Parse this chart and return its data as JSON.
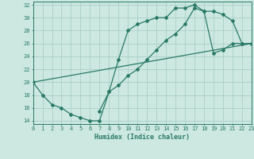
{
  "xlabel": "Humidex (Indice chaleur)",
  "bg_color": "#cce8e0",
  "grid_color": "#aacfc8",
  "line_color": "#2a7a68",
  "xlim": [
    0,
    23
  ],
  "ylim": [
    13.5,
    32.5
  ],
  "yticks": [
    14,
    16,
    18,
    20,
    22,
    24,
    26,
    28,
    30,
    32
  ],
  "xticks": [
    0,
    1,
    2,
    3,
    4,
    5,
    6,
    7,
    8,
    9,
    10,
    11,
    12,
    13,
    14,
    15,
    16,
    17,
    18,
    19,
    20,
    21,
    22,
    23
  ],
  "line1_x": [
    0,
    1,
    2,
    3,
    4,
    5,
    6,
    7,
    8,
    9,
    10,
    11,
    12,
    13,
    14,
    15,
    16,
    17,
    18,
    19,
    20,
    21,
    22,
    23
  ],
  "line1_y": [
    20,
    18,
    16.5,
    16,
    15,
    14.5,
    14,
    14,
    18.5,
    23.5,
    28,
    29,
    29.5,
    30,
    30,
    31.5,
    31.5,
    32,
    31,
    31,
    30.5,
    29.5,
    26,
    26
  ],
  "line2_x": [
    0,
    23
  ],
  "line2_y": [
    20,
    26
  ],
  "line3_x": [
    7,
    8,
    9,
    10,
    11,
    12,
    13,
    14,
    15,
    16,
    17,
    18,
    19,
    20,
    21,
    22,
    23
  ],
  "line3_y": [
    15.5,
    18.5,
    19.5,
    21,
    22,
    23.5,
    25,
    26.5,
    27.5,
    29,
    31.5,
    31,
    24.5,
    25,
    26,
    26,
    26
  ]
}
